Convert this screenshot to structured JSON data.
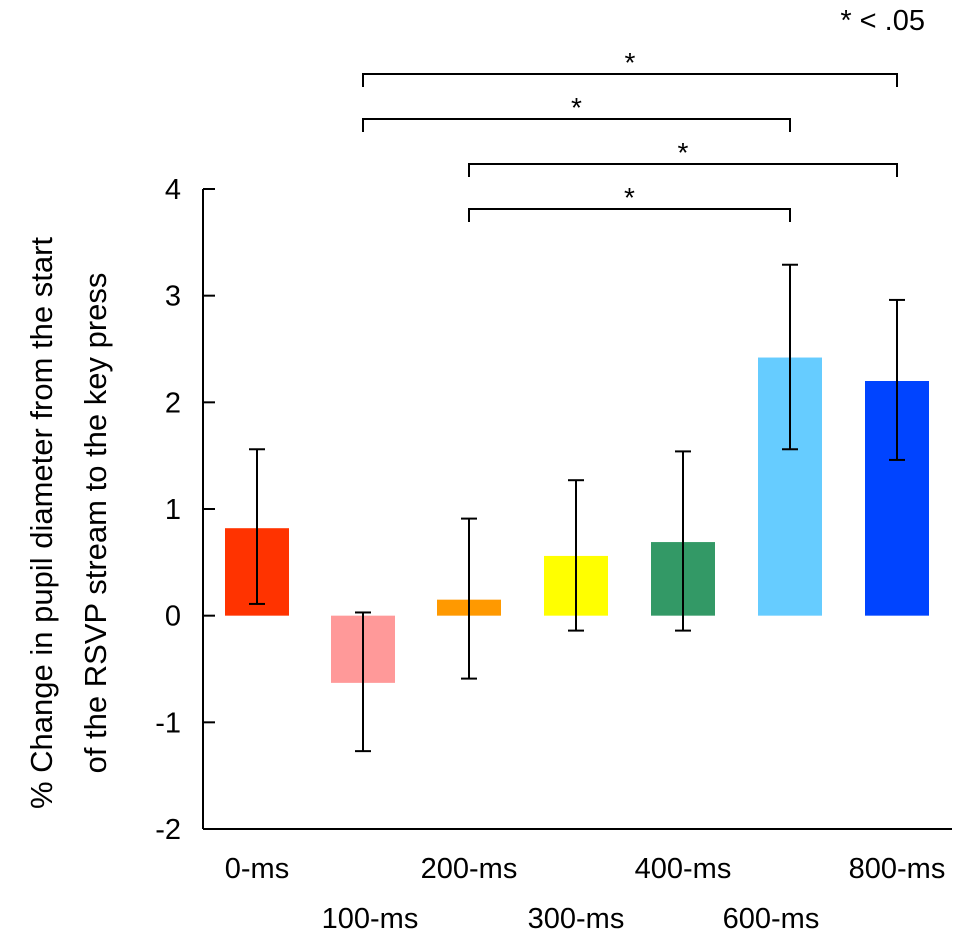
{
  "chart_data": {
    "type": "bar",
    "categories": [
      "0-ms",
      "100-ms",
      "200-ms",
      "300-ms",
      "400-ms",
      "600-ms",
      "800-ms"
    ],
    "values": [
      0.82,
      -0.63,
      0.15,
      0.56,
      0.69,
      2.42,
      2.2
    ],
    "error_low": [
      0.11,
      -1.27,
      -0.59,
      -0.14,
      -0.14,
      1.56,
      1.46
    ],
    "error_high": [
      1.56,
      0.03,
      0.91,
      1.27,
      1.54,
      3.29,
      2.96
    ],
    "colors": [
      "#ff3300",
      "#ff9999",
      "#ff9900",
      "#ffff00",
      "#339966",
      "#66ccff",
      "#0044ff"
    ],
    "ylabel_line1": "% Change in pupil diameter from the start",
    "ylabel_line2": "of the RSVP stream to the key press",
    "ylim": [
      -2,
      4
    ],
    "yticks": [
      "4",
      "3",
      "2",
      "1",
      "0",
      "-1",
      "-2"
    ],
    "ytick_values": [
      4,
      3,
      2,
      1,
      0,
      -1,
      -2
    ],
    "significance_note": "* < .05",
    "significance": [
      {
        "from": 1,
        "to": 6,
        "label": "*"
      },
      {
        "from": 1,
        "to": 5,
        "label": "*"
      },
      {
        "from": 2,
        "to": 6,
        "label": "*"
      },
      {
        "from": 2,
        "to": 5,
        "label": "*"
      }
    ]
  }
}
